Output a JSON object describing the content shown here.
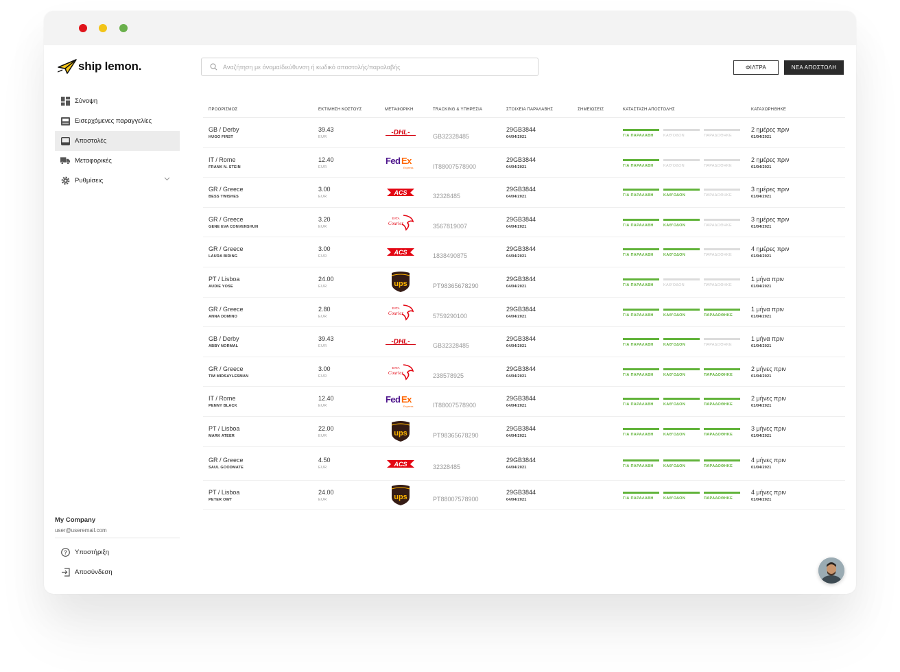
{
  "app": {
    "brand": "ship lemon.",
    "search_placeholder": "Αναζήτηση με όνομα/διεύθυνση ή κωδικό αποστολής/παραλαβής",
    "filters_label": "ΦΙΛΤΡΑ",
    "new_shipment_label": "ΝΕΑ ΑΠΟΣΤΟΛΗ"
  },
  "sidebar": {
    "items": [
      {
        "label": "Σύνοψη",
        "icon": "dashboard-icon"
      },
      {
        "label": "Εισερχόμενες παραγγελίες",
        "icon": "inbox-icon"
      },
      {
        "label": "Αποστολές",
        "icon": "shipments-icon",
        "active": true
      },
      {
        "label": "Μεταφορικές",
        "icon": "truck-icon"
      },
      {
        "label": "Ρυθμίσεις",
        "icon": "gear-icon"
      }
    ],
    "company": "My Company",
    "email": "user@useremail.com",
    "support": "Υποστήριξη",
    "logout": "Αποσύνδεση"
  },
  "table": {
    "headers": [
      "ΠΡΟΟΡΙΣΜΟΣ",
      "ΕΚΤΙΜΗΣΗ ΚΟΣΤΟΥΣ",
      "ΜΕΤΑΦΟΡΙΚΗ",
      "TRACKING & ΥΠΗΡΕΣΙΑ",
      "ΣΤΟΙΧΕΙΑ ΠΑΡΑΛΑΒΗΣ",
      "ΣΗΜΕΙΩΣΕΙΣ",
      "ΚΑΤΑΣΤΑΣΗ ΑΠΟΣΤΟΛΗΣ",
      "ΚΑΤΑΧΩΡΗΘΗΚΕ"
    ],
    "status_labels": [
      "ΓΙΑ ΠΑΡΑΛΑΒΗ",
      "ΚΑΘ'ΟΔΟΝ",
      "ΠΑΡΑΔΟΘΗΚΕ"
    ],
    "currency": "EUR",
    "rows": [
      {
        "dest": "GB / Derby",
        "name": "HUGO FIRST",
        "cost": "39.43",
        "carrier": "DHL",
        "tracking": "GB32328485",
        "pickup": "29GB3844",
        "pickup_date": "04/04/2021",
        "status_level": 1,
        "when": "2 ημέρες πριν",
        "when_date": "01/04/2021"
      },
      {
        "dest": "IT / Rome",
        "name": "FRANK N. STEIN",
        "cost": "12.40",
        "carrier": "FedEx",
        "tracking": "IT88007578900",
        "pickup": "29GB3844",
        "pickup_date": "04/04/2021",
        "status_level": 1,
        "when": "2 ημέρες πριν",
        "when_date": "01/04/2021"
      },
      {
        "dest": "GR / Greece",
        "name": "BESS TWISHES",
        "cost": "3.00",
        "carrier": "ACS",
        "tracking": "32328485",
        "pickup": "29GB3844",
        "pickup_date": "04/04/2021",
        "status_level": 2,
        "when": "3 ημέρες πριν",
        "when_date": "01/04/2021"
      },
      {
        "dest": "GR / Greece",
        "name": "GENE EVA CONVENSHUN",
        "cost": "3.20",
        "carrier": "ELTA Courier",
        "tracking": "3567819007",
        "pickup": "29GB3844",
        "pickup_date": "04/04/2021",
        "status_level": 2,
        "when": "3 ημέρες πριν",
        "when_date": "01/04/2021"
      },
      {
        "dest": "GR / Greece",
        "name": "LAURA BIDING",
        "cost": "3.00",
        "carrier": "ACS",
        "tracking": "1838490875",
        "pickup": "29GB3844",
        "pickup_date": "04/04/2021",
        "status_level": 2,
        "when": "4 ημέρες πριν",
        "when_date": "01/04/2021"
      },
      {
        "dest": "PT / Lisboa",
        "name": "AUDIE YOSE",
        "cost": "24.00",
        "carrier": "UPS",
        "tracking": "PT98365678290",
        "pickup": "29GB3844",
        "pickup_date": "04/04/2021",
        "status_level": 1,
        "when": "1 μήνα πριν",
        "when_date": "01/04/2021"
      },
      {
        "dest": "GR / Greece",
        "name": "ANNA DOMINO",
        "cost": "2.80",
        "carrier": "ELTA Courier",
        "tracking": "5759290100",
        "pickup": "29GB3844",
        "pickup_date": "04/04/2021",
        "status_level": 3,
        "when": "1 μήνα πριν",
        "when_date": "01/04/2021"
      },
      {
        "dest": "GB / Derby",
        "name": "ABBY NORMAL",
        "cost": "39.43",
        "carrier": "DHL",
        "tracking": "GB32328485",
        "pickup": "29GB3844",
        "pickup_date": "04/04/2021",
        "status_level": 2,
        "when": "1 μήνα πριν",
        "when_date": "01/04/2021"
      },
      {
        "dest": "GR / Greece",
        "name": "TIM MIDSAYLESMAN",
        "cost": "3.00",
        "carrier": "ELTA Courier",
        "tracking": "238578925",
        "pickup": "29GB3844",
        "pickup_date": "04/04/2021",
        "status_level": 3,
        "when": "2 μήνες πριν",
        "when_date": "01/04/2021"
      },
      {
        "dest": "IT / Rome",
        "name": "PENNY BLACK",
        "cost": "12.40",
        "carrier": "FedEx",
        "tracking": "IT88007578900",
        "pickup": "29GB3844",
        "pickup_date": "04/04/2021",
        "status_level": 3,
        "when": "2 μήνες πριν",
        "when_date": "01/04/2021"
      },
      {
        "dest": "PT / Lisboa",
        "name": "MARK ATEER",
        "cost": "22.00",
        "carrier": "UPS",
        "tracking": "PT98365678290",
        "pickup": "29GB3844",
        "pickup_date": "04/04/2021",
        "status_level": 3,
        "when": "3 μήνες πριν",
        "when_date": "01/04/2021"
      },
      {
        "dest": "GR / Greece",
        "name": "SAUL GOODMATE",
        "cost": "4.50",
        "carrier": "ACS",
        "tracking": "32328485",
        "pickup": "29GB3844",
        "pickup_date": "04/04/2021",
        "status_level": 3,
        "when": "4 μήνες πριν",
        "when_date": "01/04/2021"
      },
      {
        "dest": "PT / Lisboa",
        "name": "PETER OWT",
        "cost": "24.00",
        "carrier": "UPS",
        "tracking": "PT88007578900",
        "pickup": "29GB3844",
        "pickup_date": "04/04/2021",
        "status_level": 3,
        "when": "4 μήνες πριν",
        "when_date": "01/04/2021"
      }
    ]
  },
  "colors": {
    "green": "#61b33a",
    "dark_button": "#2b2b2b",
    "dhl_red": "#d40511",
    "fedex_purple": "#4d148c",
    "fedex_orange": "#ff6600",
    "ups_brown": "#351c15",
    "ups_gold": "#ffb500",
    "acs_red": "#e30613"
  }
}
